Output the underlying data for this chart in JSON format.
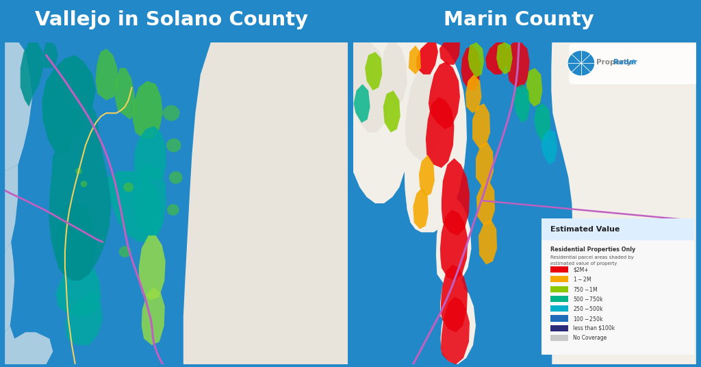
{
  "title_left": "Vallejo in Solano County",
  "title_right": "Marin County",
  "header_bg_color": "#2288c8",
  "header_text_color": "#ffffff",
  "border_color": "#2288c8",
  "legend_title": "Estimated Value",
  "legend_subtitle": "Residential Properties Only",
  "legend_desc1": "Residential parcel areas shaded by",
  "legend_desc2": "estimated value of property",
  "legend_items": [
    {
      "label": "$2M+",
      "color": "#e8000d"
    },
    {
      "label": "$1 - $2M",
      "color": "#f5a800"
    },
    {
      "label": "$750 - $1M",
      "color": "#8cc800"
    },
    {
      "label": "$500 - $750k",
      "color": "#00b389"
    },
    {
      "label": "$250 - $500k",
      "color": "#00b0c8"
    },
    {
      "label": "$100 - $250k",
      "color": "#1e6bba"
    },
    {
      "label": "less than $100k",
      "color": "#2b2b7a"
    },
    {
      "label": "No Coverage",
      "color": "#c8c8c8"
    }
  ],
  "left_map": {
    "water_color": "#aacce0",
    "land_color": "#f2efe9",
    "hill_color": "#e8e4dc",
    "teal_dark": "#009090",
    "teal_mid": "#00a8a0",
    "teal_light": "#40c8b8",
    "green_bright": "#44bb44",
    "green_light": "#99dd44",
    "yellow_green": "#ccee66",
    "road_purple": "#c060c0",
    "road_yellow": "#f0d060",
    "road_orange": "#e0a020"
  },
  "right_map": {
    "water_color": "#aacce0",
    "land_color": "#f2efe9",
    "hill_color": "#e8e4dc",
    "red": "#e8000d",
    "orange": "#f5a800",
    "yellow": "#f0d000",
    "yellow_green": "#ccee44",
    "green": "#88cc00",
    "teal": "#00b389",
    "cyan": "#00b0c8",
    "blue": "#1e6bba",
    "road_purple": "#c060c0"
  },
  "pr_globe_color": "#2288c8",
  "pr_text_property": "#cccccc",
  "pr_text_radar": "#2288c8",
  "legend_bg": "#f8f8f8",
  "legend_header_bg": "#ddeeff"
}
